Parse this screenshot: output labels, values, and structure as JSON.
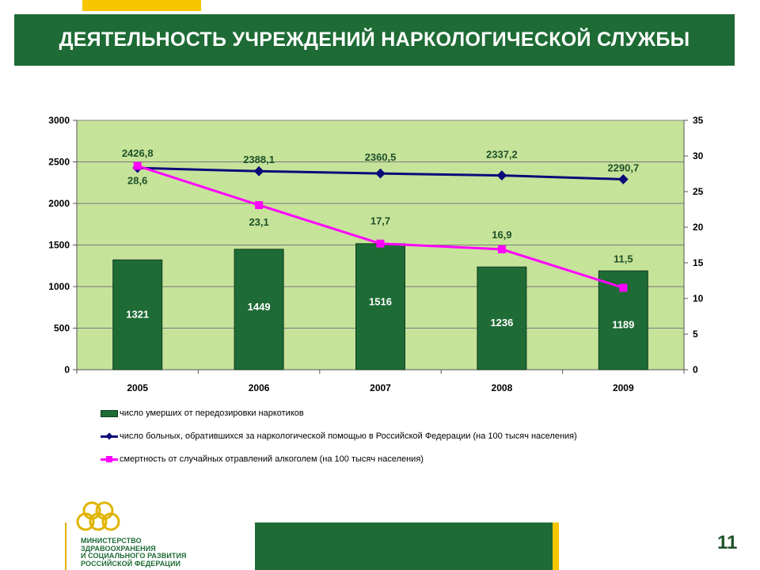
{
  "slide": {
    "title": "ДЕЯТЕЛЬНОСТЬ УЧРЕЖДЕНИЙ НАРКОЛОГИЧЕСКОЙ СЛУЖБЫ",
    "page_number": "11",
    "logo_lines": [
      "МИНИСТЕРСТВО",
      "ЗДРАВООХРАНЕНИЯ",
      "И СОЦИАЛЬНОГО РАЗВИТИЯ",
      "РОССИЙСКОЙ ФЕДЕРАЦИИ"
    ]
  },
  "colors": {
    "brand_green": "#1e6b35",
    "accent_yellow": "#f7c600",
    "plot_bg": "#c6e39a",
    "bar": "#1e6b35",
    "line_patients": "#0a0a78",
    "line_alcohol": "#ff00ff",
    "label_green": "#1e5128"
  },
  "chart_data": {
    "type": "bar",
    "categories": [
      "2005",
      "2006",
      "2007",
      "2008",
      "2009"
    ],
    "y_left": {
      "ylim": [
        0,
        3000
      ],
      "ticks": [
        "0",
        "500",
        "1000",
        "1500",
        "2000",
        "2500",
        "3000"
      ]
    },
    "y_right": {
      "ylim": [
        0,
        35
      ],
      "ticks": [
        "0",
        "5",
        "10",
        "15",
        "20",
        "25",
        "30",
        "35"
      ]
    },
    "grid": true,
    "legend_position": "bottom",
    "series": [
      {
        "name": "число умерших от передозировки наркотиков",
        "type": "bar",
        "axis": "left",
        "values": [
          1321,
          1449,
          1516,
          1236,
          1189
        ],
        "labels": [
          "1321",
          "1449",
          "1516",
          "1236",
          "1189"
        ]
      },
      {
        "name": "число больных, обратившихся за наркологической помощью в Российской Федерации (на 100 тысяч населения)",
        "type": "line",
        "axis": "left",
        "marker": "diamond",
        "values": [
          2426.8,
          2388.1,
          2360.5,
          2337.2,
          2290.7
        ],
        "labels": [
          "2426,8",
          "2388,1",
          "2360,5",
          "2337,2",
          "2290,7"
        ]
      },
      {
        "name": "смертность от случайных отравлений алкоголем (на 100 тысяч населения)",
        "type": "line",
        "axis": "right",
        "marker": "square",
        "values": [
          28.6,
          23.1,
          17.7,
          16.9,
          11.5
        ],
        "labels": [
          "28,6",
          "23,1",
          "17,7",
          "16,9",
          "11,5"
        ]
      }
    ]
  }
}
